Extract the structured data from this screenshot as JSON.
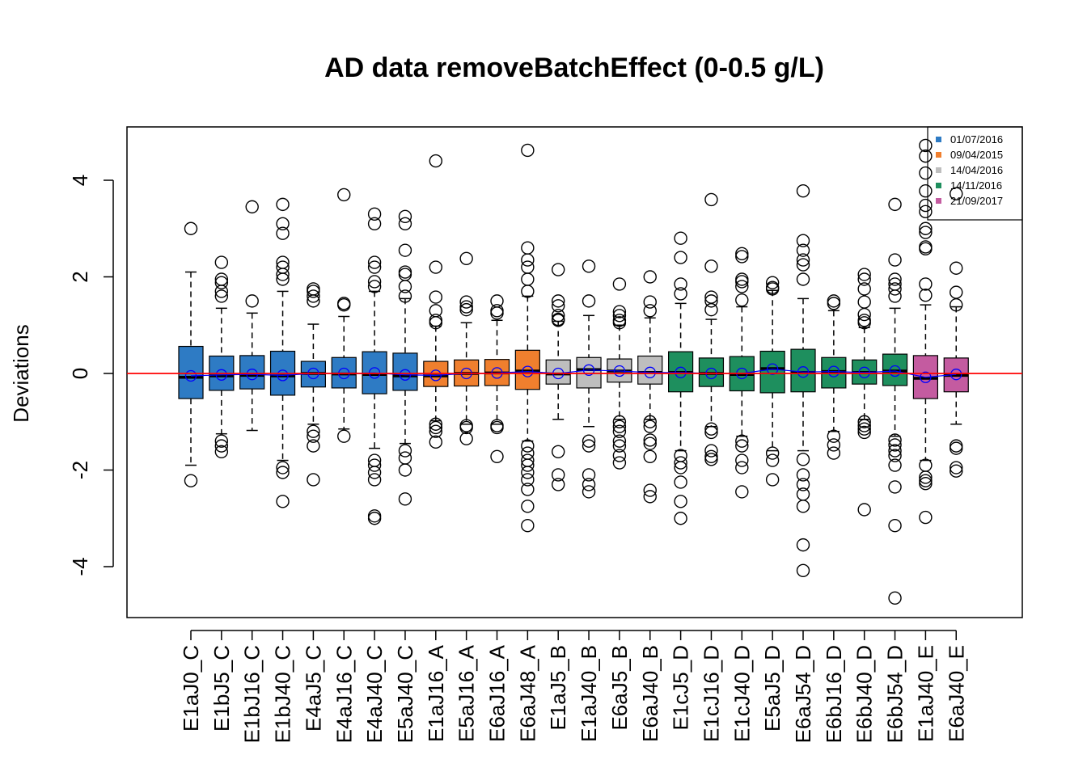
{
  "chart_data": {
    "type": "boxplot",
    "title": "AD data removeBatchEffect (0-0.5 g/L)",
    "ylabel": "Deviations",
    "xlabel": "",
    "ylim": [
      -5,
      5.1
    ],
    "yticks": [
      -4,
      -2,
      0,
      2,
      4
    ],
    "reference_line": {
      "y": 0,
      "color": "#ff0000"
    },
    "mean_marker_color": "#0000ff",
    "legend": {
      "placement": "top-right",
      "entries": [
        {
          "label": "01/07/2016",
          "color": "#2e7bc4"
        },
        {
          "label": "09/04/2015",
          "color": "#f07f2e"
        },
        {
          "label": "14/04/2016",
          "color": "#bebebe"
        },
        {
          "label": "14/11/2016",
          "color": "#1e8f5e"
        },
        {
          "label": "21/09/2017",
          "color": "#c45ba0"
        }
      ]
    },
    "boxes": [
      {
        "label": "E1aJ0_C",
        "group": 0,
        "whisker_low": -1.9,
        "q1": -0.52,
        "median": -0.08,
        "q3": 0.56,
        "whisker_high": 2.1,
        "mean": -0.05,
        "outliers": [
          3.0,
          -2.22
        ]
      },
      {
        "label": "E1bJ5_C",
        "group": 0,
        "whisker_low": -1.25,
        "q1": -0.35,
        "median": -0.05,
        "q3": 0.36,
        "whisker_high": 1.35,
        "mean": -0.03,
        "outliers": [
          2.3,
          1.95,
          1.88,
          1.7,
          1.6,
          -1.4,
          -1.5,
          -1.62
        ]
      },
      {
        "label": "E1bJ16_C",
        "group": 0,
        "whisker_low": -1.18,
        "q1": -0.32,
        "median": -0.04,
        "q3": 0.37,
        "whisker_high": 1.25,
        "mean": -0.02,
        "outliers": [
          3.45,
          1.5
        ]
      },
      {
        "label": "E1bJ40_C",
        "group": 0,
        "whisker_low": -1.8,
        "q1": -0.45,
        "median": -0.05,
        "q3": 0.46,
        "whisker_high": 1.7,
        "mean": -0.04,
        "outliers": [
          3.5,
          3.1,
          2.9,
          2.3,
          2.2,
          2.05,
          1.95,
          -1.95,
          -2.05,
          -2.65
        ]
      },
      {
        "label": "E4aJ5_C",
        "group": 0,
        "whisker_low": -1.05,
        "q1": -0.28,
        "median": 0.0,
        "q3": 0.25,
        "whisker_high": 1.02,
        "mean": 0.0,
        "outliers": [
          1.75,
          1.7,
          1.6,
          1.5,
          -1.2,
          -1.3,
          -1.5,
          -2.2
        ]
      },
      {
        "label": "E4aJ16_C",
        "group": 0,
        "whisker_low": -1.15,
        "q1": -0.3,
        "median": -0.01,
        "q3": 0.33,
        "whisker_high": 1.18,
        "mean": 0.0,
        "outliers": [
          3.7,
          1.45,
          1.42,
          -1.3
        ]
      },
      {
        "label": "E4aJ40_C",
        "group": 0,
        "whisker_low": -1.55,
        "q1": -0.42,
        "median": -0.02,
        "q3": 0.45,
        "whisker_high": 1.7,
        "mean": 0.01,
        "outliers": [
          3.3,
          3.1,
          2.3,
          2.2,
          1.9,
          1.8,
          -1.8,
          -1.9,
          -2.05,
          -2.2,
          -2.95,
          -3.0
        ]
      },
      {
        "label": "E5aJ40_C",
        "group": 0,
        "whisker_low": -1.45,
        "q1": -0.35,
        "median": -0.05,
        "q3": 0.42,
        "whisker_high": 1.55,
        "mean": -0.03,
        "outliers": [
          3.25,
          3.1,
          2.55,
          2.1,
          2.05,
          1.8,
          1.6,
          -1.6,
          -1.75,
          -2.0,
          -2.6
        ]
      },
      {
        "label": "E1aJ16_A",
        "group": 1,
        "whisker_low": -0.98,
        "q1": -0.27,
        "median": -0.05,
        "q3": 0.25,
        "whisker_high": 0.98,
        "mean": -0.04,
        "outliers": [
          4.4,
          2.2,
          1.58,
          1.3,
          1.1,
          1.05,
          -1.05,
          -1.12,
          -1.2,
          -1.42
        ]
      },
      {
        "label": "E5aJ16_A",
        "group": 1,
        "whisker_low": -1.05,
        "q1": -0.26,
        "median": 0.0,
        "q3": 0.28,
        "whisker_high": 1.05,
        "mean": 0.0,
        "outliers": [
          2.38,
          1.48,
          1.38,
          1.32,
          -1.08,
          -1.12,
          -1.35
        ]
      },
      {
        "label": "E6aJ16_A",
        "group": 1,
        "whisker_low": -1.05,
        "q1": -0.25,
        "median": 0.01,
        "q3": 0.29,
        "whisker_high": 1.1,
        "mean": 0.01,
        "outliers": [
          1.5,
          1.3,
          1.25,
          -1.08,
          -1.12,
          -1.72
        ]
      },
      {
        "label": "E6aJ48_A",
        "group": 1,
        "whisker_low": -1.4,
        "q1": -0.33,
        "median": 0.05,
        "q3": 0.48,
        "whisker_high": 1.6,
        "mean": 0.04,
        "outliers": [
          4.62,
          2.6,
          2.35,
          2.2,
          1.95,
          1.7,
          -1.5,
          -1.65,
          -1.8,
          -1.9,
          -2.05,
          -2.2,
          -2.4,
          -2.75,
          -3.15
        ]
      },
      {
        "label": "E1aJ5_B",
        "group": 2,
        "whisker_low": -0.95,
        "q1": -0.22,
        "median": -0.01,
        "q3": 0.28,
        "whisker_high": 1.08,
        "mean": 0.0,
        "outliers": [
          2.15,
          1.5,
          1.4,
          1.2,
          1.12,
          1.1,
          -1.62,
          -2.1,
          -2.3
        ]
      },
      {
        "label": "E1aJ40_B",
        "group": 2,
        "whisker_low": -1.1,
        "q1": -0.3,
        "median": 0.08,
        "q3": 0.33,
        "whisker_high": 1.2,
        "mean": 0.07,
        "outliers": [
          2.22,
          1.5,
          -1.4,
          -1.5,
          -2.1,
          -2.3,
          -2.45
        ]
      },
      {
        "label": "E6aJ5_B",
        "group": 2,
        "whisker_low": -0.95,
        "q1": -0.18,
        "median": 0.05,
        "q3": 0.3,
        "whisker_high": 1.0,
        "mean": 0.05,
        "outliers": [
          1.85,
          1.28,
          1.2,
          1.1,
          1.05,
          -1.0,
          -1.1,
          -1.2,
          -1.4,
          -1.5,
          -1.7,
          -1.85
        ]
      },
      {
        "label": "E6aJ40_B",
        "group": 2,
        "whisker_low": -0.95,
        "q1": -0.22,
        "median": 0.02,
        "q3": 0.36,
        "whisker_high": 1.15,
        "mean": 0.02,
        "outliers": [
          2.0,
          1.48,
          1.3,
          -1.0,
          -1.1,
          -1.38,
          -1.45,
          -1.72,
          -2.42,
          -2.55
        ]
      },
      {
        "label": "E1cJ5_D",
        "group": 3,
        "whisker_low": -1.6,
        "q1": -0.38,
        "median": 0.02,
        "q3": 0.45,
        "whisker_high": 1.45,
        "mean": 0.02,
        "outliers": [
          2.8,
          2.4,
          1.85,
          1.65,
          -1.7,
          -1.85,
          -1.95,
          -2.25,
          -2.65,
          -3.0
        ]
      },
      {
        "label": "E1cJ16_D",
        "group": 3,
        "whisker_low": -1.1,
        "q1": -0.27,
        "median": 0.0,
        "q3": 0.32,
        "whisker_high": 1.12,
        "mean": 0.0,
        "outliers": [
          3.6,
          2.22,
          1.58,
          1.5,
          1.32,
          -1.15,
          -1.22,
          -1.6,
          -1.72,
          -1.78
        ]
      },
      {
        "label": "E1cJ40_D",
        "group": 3,
        "whisker_low": -1.3,
        "q1": -0.36,
        "median": -0.02,
        "q3": 0.35,
        "whisker_high": 1.38,
        "mean": 0.0,
        "outliers": [
          2.48,
          2.42,
          1.95,
          1.9,
          1.8,
          1.52,
          -1.4,
          -1.5,
          -1.8,
          -1.95,
          -2.45
        ]
      },
      {
        "label": "E5aJ5_D",
        "group": 3,
        "whisker_low": -1.6,
        "q1": -0.4,
        "median": 0.1,
        "q3": 0.46,
        "whisker_high": 1.72,
        "mean": 0.09,
        "outliers": [
          1.88,
          1.78,
          1.75,
          -1.65,
          -1.8,
          -2.2
        ]
      },
      {
        "label": "E6aJ54_D",
        "group": 3,
        "whisker_low": -1.6,
        "q1": -0.38,
        "median": 0.02,
        "q3": 0.5,
        "whisker_high": 1.55,
        "mean": 0.03,
        "outliers": [
          3.78,
          2.75,
          2.55,
          2.35,
          2.25,
          1.95,
          -1.78,
          -2.1,
          -2.3,
          -2.5,
          -2.75,
          -3.55,
          -4.08
        ]
      },
      {
        "label": "E6bJ16_D",
        "group": 3,
        "whisker_low": -1.2,
        "q1": -0.3,
        "median": 0.04,
        "q3": 0.33,
        "whisker_high": 1.3,
        "mean": 0.04,
        "outliers": [
          1.5,
          1.45,
          -1.3,
          -1.48,
          -1.65
        ]
      },
      {
        "label": "E6bJ40_D",
        "group": 3,
        "whisker_low": -0.95,
        "q1": -0.22,
        "median": 0.02,
        "q3": 0.28,
        "whisker_high": 0.95,
        "mean": 0.02,
        "outliers": [
          2.05,
          1.95,
          1.75,
          1.48,
          1.22,
          1.1,
          1.05,
          -1.0,
          -1.08,
          -1.15,
          -1.22,
          -2.82
        ]
      },
      {
        "label": "E6bJ54_D",
        "group": 3,
        "whisker_low": -1.3,
        "q1": -0.25,
        "median": 0.05,
        "q3": 0.4,
        "whisker_high": 1.35,
        "mean": 0.05,
        "outliers": [
          3.5,
          2.35,
          1.95,
          1.85,
          1.75,
          1.6,
          -1.38,
          -1.48,
          -1.6,
          -1.7,
          -1.9,
          -2.35,
          -3.15,
          -4.65
        ]
      },
      {
        "label": "E1aJ40_E",
        "group": 4,
        "whisker_low": -1.8,
        "q1": -0.52,
        "median": -0.1,
        "q3": 0.37,
        "whisker_high": 1.42,
        "mean": -0.08,
        "outliers": [
          4.72,
          4.5,
          4.15,
          3.78,
          3.48,
          3.35,
          3.0,
          2.92,
          2.62,
          2.58,
          1.85,
          1.62,
          -1.9,
          -2.15,
          -2.22,
          -2.28,
          -2.98
        ]
      },
      {
        "label": "E6aJ40_E",
        "group": 4,
        "whisker_low": -1.05,
        "q1": -0.38,
        "median": -0.04,
        "q3": 0.32,
        "whisker_high": 1.38,
        "mean": -0.02,
        "outliers": [
          3.72,
          2.18,
          1.68,
          1.42,
          -1.5,
          -1.55,
          -1.95,
          -2.02
        ]
      }
    ]
  }
}
